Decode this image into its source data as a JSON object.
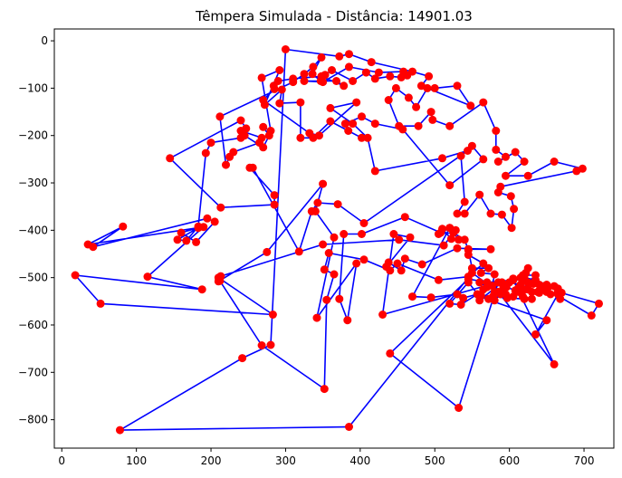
{
  "chart_data": {
    "type": "line",
    "title": "Têmpera Simulada - Distância: 14901.03",
    "xlabel": "",
    "ylabel": "",
    "xlim": [
      -10,
      740
    ],
    "ylim": [
      -860,
      25
    ],
    "xticks": [
      0,
      100,
      200,
      300,
      400,
      500,
      600,
      700
    ],
    "yticks": [
      0,
      -100,
      -200,
      -300,
      -400,
      -500,
      -600,
      -700,
      -800
    ],
    "grid": false,
    "colors": {
      "route": "#0000ff",
      "cities": "#ff0000"
    },
    "series": [
      {
        "marker": "circle",
        "closed": true,
        "points": [
          [
            300,
            -18
          ],
          [
            372,
            -33
          ],
          [
            385,
            -28
          ],
          [
            415,
            -45
          ],
          [
            470,
            -65
          ],
          [
            492,
            -75
          ],
          [
            482,
            -95
          ],
          [
            500,
            -100
          ],
          [
            530,
            -95
          ],
          [
            548,
            -137
          ],
          [
            490,
            -100
          ],
          [
            475,
            -140
          ],
          [
            465,
            -120
          ],
          [
            448,
            -100
          ],
          [
            438,
            -125
          ],
          [
            452,
            -180
          ],
          [
            478,
            -180
          ],
          [
            495,
            -150
          ],
          [
            497,
            -167
          ],
          [
            520,
            -180
          ],
          [
            565,
            -130
          ],
          [
            582,
            -190
          ],
          [
            582,
            -230
          ],
          [
            595,
            -245
          ],
          [
            585,
            -255
          ],
          [
            608,
            -235
          ],
          [
            620,
            -255
          ],
          [
            595,
            -285
          ],
          [
            625,
            -285
          ],
          [
            660,
            -255
          ],
          [
            698,
            -270
          ],
          [
            690,
            -275
          ],
          [
            588,
            -308
          ],
          [
            585,
            -320
          ],
          [
            602,
            -328
          ],
          [
            606,
            -355
          ],
          [
            603,
            -395
          ],
          [
            590,
            -367
          ],
          [
            575,
            -365
          ],
          [
            560,
            -325
          ],
          [
            540,
            -365
          ],
          [
            530,
            -365
          ],
          [
            540,
            -340
          ],
          [
            535,
            -243
          ],
          [
            550,
            -222
          ],
          [
            565,
            -250
          ],
          [
            520,
            -305
          ],
          [
            457,
            -187
          ],
          [
            420,
            -175
          ],
          [
            402,
            -160
          ],
          [
            380,
            -175
          ],
          [
            384,
            -190
          ],
          [
            402,
            -205
          ],
          [
            360,
            -170
          ],
          [
            337,
            -205
          ],
          [
            320,
            -205
          ],
          [
            320,
            -130
          ],
          [
            292,
            -132
          ],
          [
            295,
            -103
          ],
          [
            272,
            -135
          ],
          [
            292,
            -62
          ],
          [
            268,
            -78
          ],
          [
            280,
            -190
          ],
          [
            270,
            -182
          ],
          [
            278,
            -200
          ],
          [
            270,
            -225
          ],
          [
            245,
            -200
          ],
          [
            240,
            -190
          ],
          [
            268,
            -205
          ],
          [
            265,
            -215
          ],
          [
            230,
            -235
          ],
          [
            225,
            -245
          ],
          [
            220,
            -262
          ],
          [
            212,
            -160
          ],
          [
            310,
            -87
          ],
          [
            325,
            -70
          ],
          [
            337,
            -55
          ],
          [
            348,
            -35
          ],
          [
            336,
            -70
          ],
          [
            347,
            -85
          ],
          [
            353,
            -72
          ],
          [
            362,
            -62
          ],
          [
            390,
            -85
          ],
          [
            408,
            -67
          ],
          [
            420,
            -80
          ],
          [
            440,
            -75
          ],
          [
            455,
            -77
          ],
          [
            463,
            -73
          ],
          [
            458,
            -65
          ],
          [
            425,
            -67
          ],
          [
            385,
            -55
          ],
          [
            350,
            -87
          ],
          [
            325,
            -85
          ],
          [
            368,
            -85
          ],
          [
            378,
            -95
          ],
          [
            348,
            -75
          ],
          [
            310,
            -80
          ],
          [
            290,
            -85
          ],
          [
            284,
            -95
          ],
          [
            285,
            -102
          ],
          [
            270,
            -125
          ],
          [
            332,
            -195
          ],
          [
            345,
            -200
          ],
          [
            395,
            -130
          ],
          [
            360,
            -142
          ],
          [
            390,
            -175
          ],
          [
            410,
            -205
          ],
          [
            420,
            -275
          ],
          [
            510,
            -248
          ],
          [
            544,
            -232
          ],
          [
            405,
            -385
          ],
          [
            370,
            -345
          ],
          [
            343,
            -342
          ],
          [
            335,
            -360
          ],
          [
            318,
            -445
          ],
          [
            256,
            -268
          ],
          [
            252,
            -268
          ],
          [
            285,
            -326
          ],
          [
            285,
            -346
          ],
          [
            213,
            -352
          ],
          [
            145,
            -248
          ],
          [
            240,
            -168
          ],
          [
            247,
            -185
          ],
          [
            240,
            -205
          ],
          [
            200,
            -215
          ],
          [
            193,
            -237
          ],
          [
            183,
            -392
          ],
          [
            167,
            -422
          ],
          [
            155,
            -420
          ],
          [
            183,
            -395
          ],
          [
            160,
            -405
          ],
          [
            180,
            -425
          ],
          [
            205,
            -382
          ],
          [
            195,
            -375
          ],
          [
            42,
            -435
          ],
          [
            82,
            -392
          ],
          [
            35,
            -430
          ],
          [
            190,
            -393
          ],
          [
            115,
            -498
          ],
          [
            188,
            -525
          ],
          [
            18,
            -495
          ],
          [
            52,
            -555
          ],
          [
            283,
            -578
          ],
          [
            210,
            -500
          ],
          [
            210,
            -508
          ],
          [
            275,
            -446
          ],
          [
            350,
            -302
          ],
          [
            340,
            -360
          ],
          [
            365,
            -415
          ],
          [
            342,
            -585
          ],
          [
            395,
            -470
          ],
          [
            383,
            -590
          ],
          [
            372,
            -545
          ],
          [
            378,
            -408
          ],
          [
            402,
            -408
          ],
          [
            460,
            -372
          ],
          [
            508,
            -405
          ],
          [
            510,
            -397
          ],
          [
            522,
            -418
          ],
          [
            532,
            -420
          ],
          [
            520,
            -395
          ],
          [
            505,
            -408
          ],
          [
            525,
            -405
          ],
          [
            540,
            -420
          ],
          [
            545,
            -442
          ],
          [
            550,
            -480
          ],
          [
            572,
            -480
          ],
          [
            562,
            -490
          ],
          [
            580,
            -493
          ],
          [
            577,
            -517
          ],
          [
            570,
            -520
          ],
          [
            560,
            -510
          ],
          [
            565,
            -525
          ],
          [
            560,
            -548
          ],
          [
            590,
            -510
          ],
          [
            605,
            -505
          ],
          [
            612,
            -522
          ],
          [
            632,
            -513
          ],
          [
            648,
            -517
          ],
          [
            660,
            -518
          ],
          [
            650,
            -530
          ],
          [
            640,
            -528
          ],
          [
            645,
            -520
          ],
          [
            630,
            -530
          ],
          [
            608,
            -527
          ],
          [
            596,
            -520
          ],
          [
            588,
            -535
          ],
          [
            580,
            -548
          ],
          [
            562,
            -538
          ],
          [
            572,
            -545
          ],
          [
            578,
            -540
          ],
          [
            597,
            -543
          ],
          [
            620,
            -545
          ],
          [
            630,
            -545
          ],
          [
            618,
            -540
          ],
          [
            612,
            -530
          ],
          [
            640,
            -532
          ],
          [
            652,
            -520
          ],
          [
            665,
            -523
          ],
          [
            670,
            -532
          ],
          [
            668,
            -545
          ],
          [
            665,
            -530
          ],
          [
            720,
            -555
          ],
          [
            710,
            -580
          ],
          [
            640,
            -515
          ],
          [
            620,
            -500
          ],
          [
            635,
            -505
          ],
          [
            650,
            -515
          ],
          [
            638,
            -530
          ],
          [
            620,
            -525
          ],
          [
            618,
            -508
          ],
          [
            605,
            -502
          ],
          [
            615,
            -500
          ],
          [
            622,
            -490
          ],
          [
            625,
            -480
          ],
          [
            618,
            -495
          ],
          [
            635,
            -495
          ],
          [
            625,
            -510
          ],
          [
            615,
            -515
          ],
          [
            600,
            -510
          ],
          [
            592,
            -520
          ],
          [
            580,
            -530
          ],
          [
            595,
            -535
          ],
          [
            605,
            -540
          ],
          [
            625,
            -525
          ],
          [
            640,
            -530
          ],
          [
            655,
            -535
          ],
          [
            665,
            -535
          ],
          [
            635,
            -620
          ],
          [
            650,
            -590
          ],
          [
            560,
            -540
          ],
          [
            545,
            -510
          ],
          [
            520,
            -555
          ],
          [
            535,
            -557
          ],
          [
            557,
            -535
          ],
          [
            538,
            -543
          ],
          [
            530,
            -535
          ],
          [
            495,
            -542
          ],
          [
            470,
            -540
          ],
          [
            520,
            -395
          ],
          [
            528,
            -400
          ],
          [
            512,
            -432
          ],
          [
            452,
            -420
          ],
          [
            350,
            -430
          ],
          [
            213,
            -497
          ],
          [
            212,
            -507
          ],
          [
            268,
            -643
          ],
          [
            352,
            -735
          ],
          [
            355,
            -547
          ],
          [
            365,
            -493
          ],
          [
            352,
            -483
          ],
          [
            358,
            -448
          ],
          [
            405,
            -462
          ],
          [
            440,
            -485
          ],
          [
            450,
            -470
          ],
          [
            505,
            -505
          ],
          [
            545,
            -498
          ],
          [
            565,
            -470
          ],
          [
            545,
            -452
          ],
          [
            545,
            -440
          ],
          [
            575,
            -440
          ],
          [
            530,
            -438
          ],
          [
            483,
            -472
          ],
          [
            460,
            -460
          ],
          [
            455,
            -485
          ],
          [
            438,
            -468
          ],
          [
            435,
            -477
          ],
          [
            467,
            -415
          ],
          [
            445,
            -408
          ],
          [
            430,
            -578
          ],
          [
            585,
            -510
          ],
          [
            532,
            -775
          ],
          [
            440,
            -660
          ],
          [
            545,
            -503
          ],
          [
            570,
            -510
          ],
          [
            605,
            -505
          ],
          [
            660,
            -683
          ],
          [
            585,
            -530
          ],
          [
            550,
            -490
          ],
          [
            385,
            -815
          ],
          [
            78,
            -822
          ],
          [
            242,
            -670
          ],
          [
            280,
            -642
          ]
        ]
      }
    ]
  }
}
